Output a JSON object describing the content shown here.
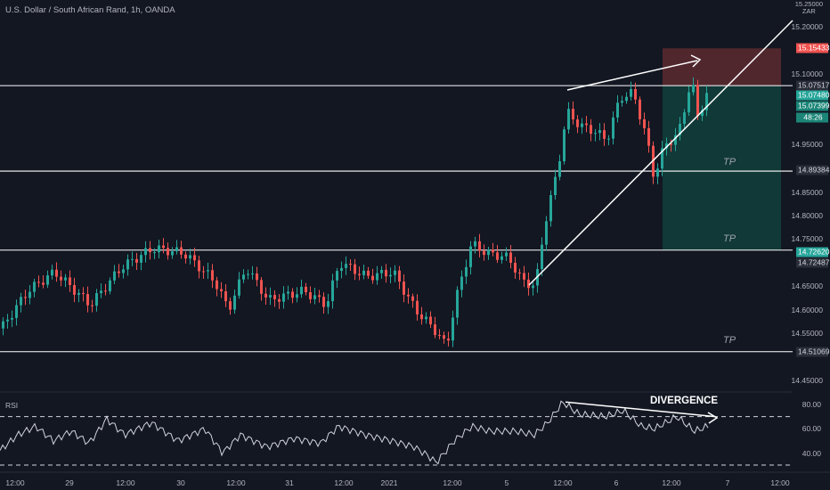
{
  "symbol_title": "U.S. Dollar / South African Rand, 1h, OANDA",
  "axis_unit_top": "15.25000",
  "axis_unit_bottom": "ZAR",
  "price_axis": [
    "15.20000",
    "15.10000",
    "14.95000",
    "14.85000",
    "14.80000",
    "14.75000",
    "14.65000",
    "14.60000",
    "14.55000",
    "14.45000"
  ],
  "price_axis_values": [
    15.2,
    15.1,
    14.95,
    14.85,
    14.8,
    14.75,
    14.65,
    14.6,
    14.55,
    14.45
  ],
  "tags": {
    "stop_loss": "15.15433",
    "resistance": "15.07517",
    "current": "15.07480",
    "last": "15.07399",
    "countdown": "48:26",
    "level_2": "14.89384",
    "target_2": "14.72620",
    "level_3": "14.72487",
    "level_4": "14.51069"
  },
  "tp_labels": [
    "TP",
    "TP",
    "TP"
  ],
  "annotation": "DIVERGENCE",
  "rsi": {
    "label": "RSI",
    "axis": [
      "80.00",
      "60.00",
      "40.00"
    ],
    "axis_values": [
      80,
      60,
      40
    ],
    "upper_band": 70,
    "lower_band": 30
  },
  "time_axis": [
    "12:00",
    "29",
    "12:00",
    "30",
    "12:00",
    "31",
    "12:00",
    "2021",
    "12:00",
    "5",
    "12:00",
    "6",
    "12:00",
    "7",
    "12:00"
  ],
  "colors": {
    "background": "#131722",
    "up": "#26a69a",
    "down": "#ef5350",
    "line": "#ffffff",
    "stop_zone": "#5d2a30",
    "target_zone": "#123d3a"
  }
}
